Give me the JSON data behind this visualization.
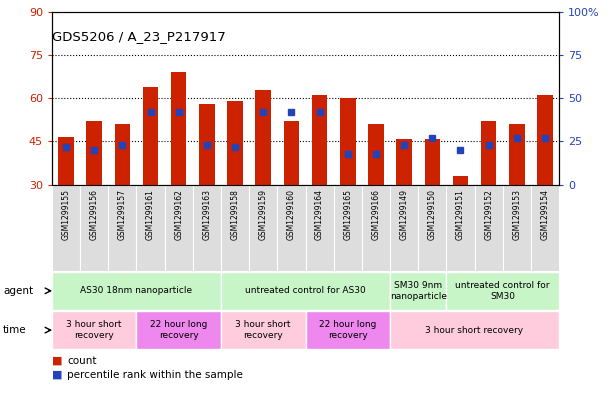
{
  "title": "GDS5206 / A_23_P217917",
  "samples": [
    "GSM1299155",
    "GSM1299156",
    "GSM1299157",
    "GSM1299161",
    "GSM1299162",
    "GSM1299163",
    "GSM1299158",
    "GSM1299159",
    "GSM1299160",
    "GSM1299164",
    "GSM1299165",
    "GSM1299166",
    "GSM1299149",
    "GSM1299150",
    "GSM1299151",
    "GSM1299152",
    "GSM1299153",
    "GSM1299154"
  ],
  "counts": [
    46.5,
    52,
    51,
    64,
    69,
    58,
    59,
    63,
    52,
    61,
    60,
    51,
    46,
    46,
    33,
    52,
    51,
    61
  ],
  "percentile_ranks": [
    22,
    20,
    23,
    42,
    42,
    23,
    22,
    42,
    42,
    42,
    18,
    18,
    23,
    27,
    20,
    23,
    27,
    27
  ],
  "ylim_left": [
    30,
    90
  ],
  "yticks_left": [
    30,
    45,
    60,
    75,
    90
  ],
  "ylim_right": [
    0,
    100
  ],
  "yticks_right": [
    0,
    25,
    50,
    75,
    100
  ],
  "bar_color": "#cc2200",
  "marker_color": "#2244bb",
  "hline_values": [
    45,
    60,
    75
  ],
  "agent_groups": [
    {
      "label": "AS30 18nm nanoparticle",
      "start": 0,
      "end": 6
    },
    {
      "label": "untreated control for AS30",
      "start": 6,
      "end": 12
    },
    {
      "label": "SM30 9nm\nnanoparticle",
      "start": 12,
      "end": 14
    },
    {
      "label": "untreated control for\nSM30",
      "start": 14,
      "end": 18
    }
  ],
  "agent_color": "#c8f5c8",
  "time_groups": [
    {
      "label": "3 hour short\nrecovery",
      "start": 0,
      "end": 3,
      "color": "#ffccdd"
    },
    {
      "label": "22 hour long\nrecovery",
      "start": 3,
      "end": 6,
      "color": "#ee88ee"
    },
    {
      "label": "3 hour short\nrecovery",
      "start": 6,
      "end": 9,
      "color": "#ffccdd"
    },
    {
      "label": "22 hour long\nrecovery",
      "start": 9,
      "end": 12,
      "color": "#ee88ee"
    },
    {
      "label": "3 hour short recovery",
      "start": 12,
      "end": 18,
      "color": "#ffccdd"
    }
  ],
  "xtick_bg": "#dddddd",
  "bar_width": 0.55
}
